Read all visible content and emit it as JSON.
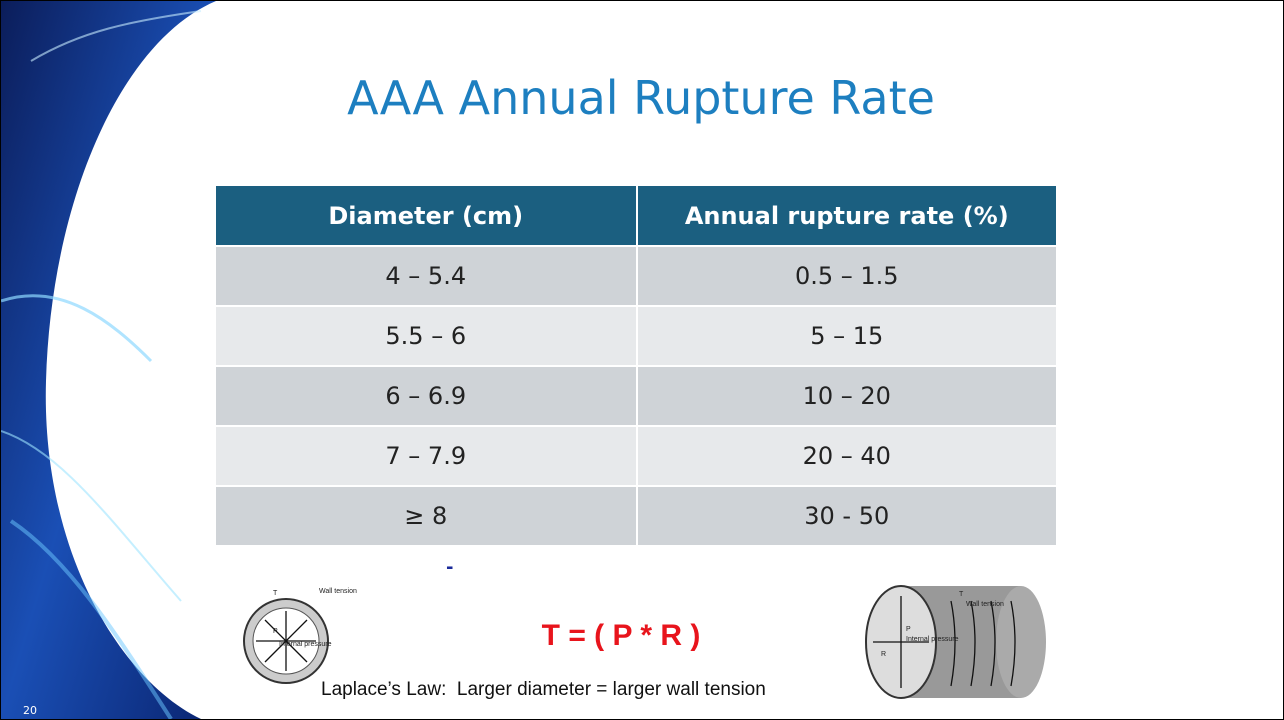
{
  "slide": {
    "title": "AAA Annual Rupture Rate",
    "number": "20"
  },
  "table": {
    "header": [
      "Diameter (cm)",
      "Annual rupture rate (%)"
    ],
    "rows": [
      [
        "4 – 5.4",
        "0.5 – 1.5"
      ],
      [
        "5.5 – 6",
        "5 – 15"
      ],
      [
        "6 – 6.9",
        "10 – 20"
      ],
      [
        "7 – 7.9",
        "20 – 40"
      ],
      [
        "≥ 8",
        "30 - 50"
      ]
    ]
  },
  "figure": {
    "marker": "-",
    "equation": "T = ( P * R )",
    "caption": "Laplace’s Law:  Larger diameter = larger wall tension",
    "left_labels": [
      "T",
      "Wall tension",
      "P",
      "Internal pressure"
    ],
    "right_labels": [
      "T",
      "Wall tension",
      "P",
      "Internal pressure",
      "R"
    ]
  }
}
